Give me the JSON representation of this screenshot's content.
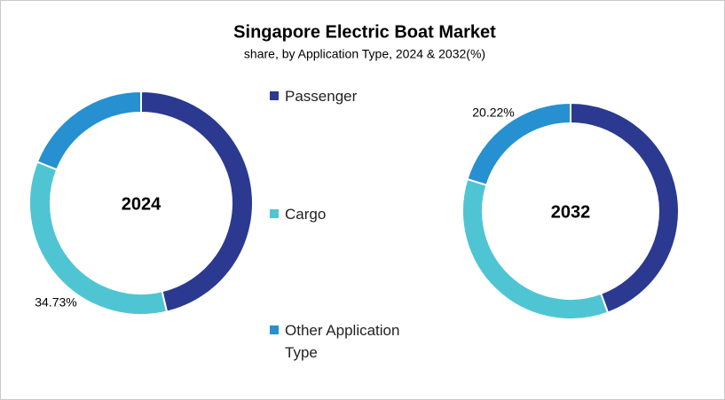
{
  "chart_data": [
    {
      "type": "pie",
      "title": "Singapore Electric Boat Market",
      "subtitle": "share, by Application Type, 2024 & 2032(%)",
      "center_label": "2024",
      "categories": [
        "Passenger",
        "Cargo",
        "Other Application Type"
      ],
      "values": [
        46.3,
        34.73,
        18.97
      ],
      "value_labels": [
        null,
        "34.73%",
        null
      ],
      "colors": [
        "#2b3990",
        "#4fc5d3",
        "#2690d0"
      ]
    },
    {
      "type": "pie",
      "center_label": "2032",
      "categories": [
        "Passenger",
        "Cargo",
        "Other Application Type"
      ],
      "values": [
        44.4,
        35.38,
        20.22
      ],
      "value_labels": [
        null,
        null,
        "20.22%"
      ],
      "colors": [
        "#2b3990",
        "#4fc5d3",
        "#2690d0"
      ]
    }
  ]
}
